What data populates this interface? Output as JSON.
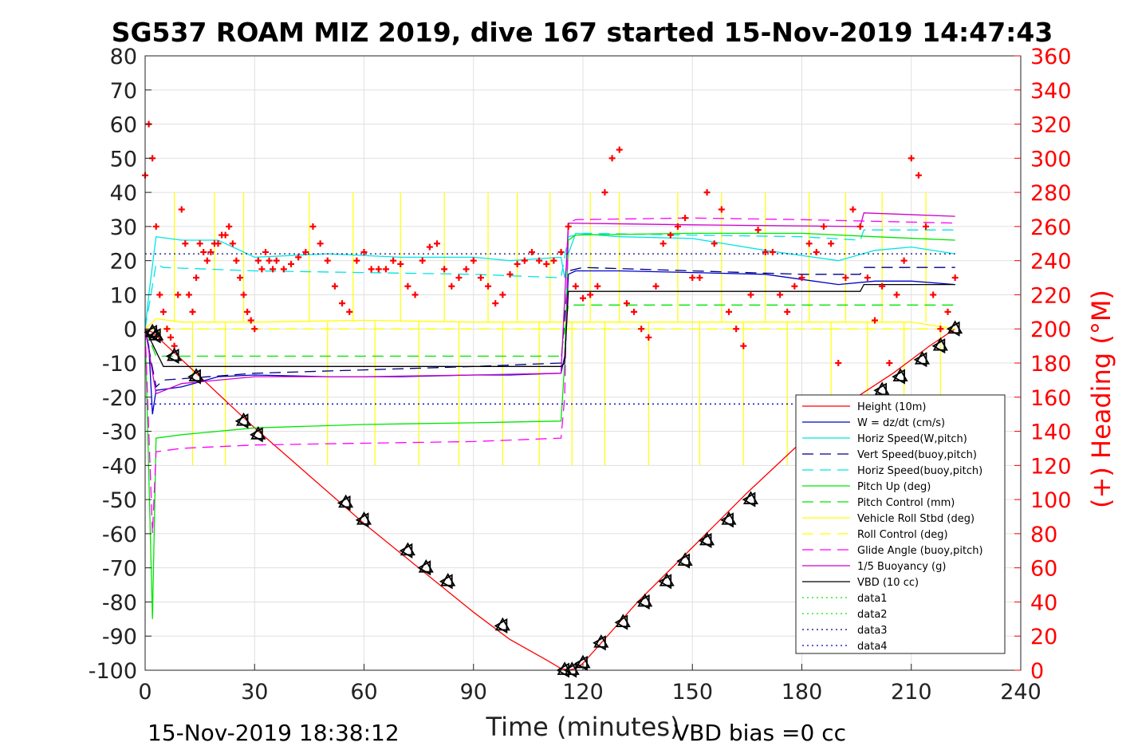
{
  "chart_data": {
    "type": "line",
    "title": "SG537 ROAM MIZ 2019, dive 167 started 15-Nov-2019 14:47:43",
    "xlabel": "Time (minutes)",
    "ylabel": "",
    "y2label": "(+) Heading (°M)",
    "xlim": [
      0,
      240
    ],
    "ylim": [
      -100,
      80
    ],
    "y2lim": [
      0,
      360
    ],
    "x_ticks": [
      "0",
      "30",
      "60",
      "90",
      "120",
      "150",
      "180",
      "210",
      "240"
    ],
    "y_ticks": [
      "80",
      "70",
      "60",
      "50",
      "40",
      "30",
      "20",
      "10",
      "0",
      "-10",
      "-20",
      "-30",
      "-40",
      "-50",
      "-60",
      "-70",
      "-80",
      "-90",
      "-100"
    ],
    "y2_ticks": [
      "360",
      "340",
      "320",
      "300",
      "280",
      "260",
      "240",
      "220",
      "200",
      "180",
      "160",
      "140",
      "120",
      "100",
      "80",
      "60",
      "40",
      "20",
      "0"
    ],
    "grid": true,
    "legend_position": "lower-right",
    "footer_left": "15-Nov-2019 18:38:12",
    "footer_right": "VBD bias =0 cc",
    "colors": {
      "height": "#ff0000",
      "w": "#0000cc",
      "horiz_speed_w": "#00e5e5",
      "vert_speed_buoy": "#000080",
      "horiz_speed_buoy": "#00e5e5",
      "pitch_up": "#00e600",
      "pitch_control": "#00e600",
      "roll": "#ffff00",
      "roll_control": "#ffff00",
      "glide_angle": "#ff00ff",
      "buoyancy": "#cc00cc",
      "vbd": "#000000",
      "data1": "#00e600",
      "data2": "#00e600",
      "data3": "#000080",
      "data4": "#0000cc",
      "heading": "#ff0000"
    },
    "series": [
      {
        "name": "Height (10m)",
        "key": "height",
        "style": "solid",
        "x": [
          0,
          2,
          5,
          10,
          20,
          30,
          45,
          60,
          75,
          90,
          100,
          110,
          114,
          116,
          118,
          120,
          125,
          135,
          150,
          165,
          180,
          195,
          205,
          215,
          222
        ],
        "values": [
          0,
          -1,
          -4,
          -9,
          -19,
          -29,
          -43,
          -57,
          -70,
          -83,
          -91,
          -97,
          -99.5,
          -100,
          -99.5,
          -98,
          -92,
          -80,
          -64,
          -48,
          -33,
          -20,
          -13,
          -5,
          0
        ]
      },
      {
        "name": "W = dz/dt (cm/s)",
        "key": "w",
        "style": "solid",
        "x": [
          0,
          1,
          2,
          3,
          10,
          20,
          30,
          50,
          70,
          90,
          100,
          114,
          115,
          116,
          118,
          130,
          150,
          170,
          190,
          200,
          210,
          222
        ],
        "values": [
          0,
          -5,
          -25,
          -18,
          -17,
          -14,
          -13.5,
          -14,
          -14,
          -13.5,
          -13.5,
          -13,
          -8,
          16,
          17,
          17,
          16.5,
          16,
          13,
          14,
          14,
          13
        ]
      },
      {
        "name": "Horiz Speed(W,pitch)",
        "key": "horiz_speed_w",
        "style": "solid",
        "x": [
          0,
          1,
          3,
          10,
          20,
          30,
          50,
          70,
          90,
          100,
          114,
          115,
          116,
          118,
          130,
          150,
          170,
          190,
          200,
          210,
          222
        ],
        "values": [
          0,
          10,
          27,
          26,
          26,
          21,
          22,
          21,
          21,
          20,
          21,
          15,
          22,
          28,
          27,
          26.5,
          23,
          20,
          23,
          24,
          22
        ]
      },
      {
        "name": "Vert Speed(buoy,pitch)",
        "key": "vert_speed_buoy",
        "style": "dashed",
        "x": [
          0,
          3,
          5,
          30,
          60,
          90,
          114,
          116,
          120,
          150,
          180,
          196,
          197,
          222
        ],
        "values": [
          0,
          -17,
          -15,
          -13,
          -12,
          -11,
          -10,
          17,
          18,
          17,
          16,
          16,
          18,
          18
        ]
      },
      {
        "name": "Horiz Speed(buoy,pitch)",
        "key": "horiz_speed_buoy",
        "style": "dashed",
        "x": [
          0,
          3,
          5,
          30,
          60,
          90,
          114,
          116,
          120,
          150,
          180,
          196,
          197,
          222
        ],
        "values": [
          0,
          19,
          18,
          17,
          16.5,
          16,
          15,
          27,
          28,
          27.5,
          27,
          26,
          29,
          29
        ]
      },
      {
        "name": "Pitch Up (deg)",
        "key": "pitch_up",
        "style": "solid",
        "x": [
          0,
          2,
          3,
          10,
          30,
          60,
          90,
          114,
          115,
          116,
          118,
          150,
          180,
          200,
          222
        ],
        "values": [
          0,
          -85,
          -32,
          -31,
          -29,
          -28,
          -27.5,
          -27,
          -10,
          26,
          27.5,
          28,
          28,
          27,
          26
        ]
      },
      {
        "name": "Pitch Control (mm)",
        "key": "pitch_control",
        "style": "dashed",
        "x": [
          0,
          3,
          114,
          116,
          222
        ],
        "values": [
          0,
          -8,
          -8,
          7,
          7
        ]
      },
      {
        "name": "Vehicle Roll Stbd (deg)",
        "key": "roll",
        "style": "solid",
        "x": [
          0,
          2,
          3,
          10,
          30,
          60,
          90,
          114,
          116,
          150,
          180,
          210,
          222
        ],
        "values": [
          0,
          2,
          3,
          2,
          2,
          2.5,
          2,
          2,
          2,
          2,
          2,
          2,
          0
        ]
      },
      {
        "name": "Roll Control (deg)",
        "key": "roll_control",
        "style": "dashed",
        "x": [
          0,
          222
        ],
        "values": [
          0,
          0
        ]
      },
      {
        "name": "Glide Angle (buoy,pitch)",
        "key": "glide_angle",
        "style": "dashed",
        "x": [
          0,
          2,
          3,
          10,
          30,
          60,
          90,
          114,
          115,
          116,
          118,
          150,
          180,
          222
        ],
        "values": [
          0,
          -60,
          -36,
          -35,
          -34,
          -33.5,
          -33,
          -32,
          -20,
          31,
          32,
          32.5,
          32,
          31
        ]
      },
      {
        "name": "1/5 Buoyancy (g)",
        "key": "buoyancy",
        "style": "solid",
        "x": [
          0,
          3,
          10,
          30,
          60,
          90,
          114,
          116,
          150,
          196,
          197,
          222
        ],
        "values": [
          0,
          -19,
          -16,
          -14,
          -14,
          -13.5,
          -13,
          31,
          30.5,
          30,
          34,
          33
        ]
      },
      {
        "name": "VBD (10 cc)",
        "key": "vbd",
        "style": "solid",
        "x": [
          0,
          5,
          114,
          115,
          116,
          196,
          197,
          222
        ],
        "values": [
          0,
          -11,
          -11,
          -10,
          11,
          11,
          13,
          13
        ]
      },
      {
        "name": "data1",
        "key": "data1",
        "style": "dotted",
        "x": [],
        "values": []
      },
      {
        "name": "data2",
        "key": "data2",
        "style": "dotted",
        "x": [],
        "values": []
      },
      {
        "name": "data3",
        "key": "data3",
        "style": "dotted",
        "x": [
          0,
          222
        ],
        "values": [
          22,
          22
        ]
      },
      {
        "name": "data4",
        "key": "data4",
        "style": "dotted",
        "x": [
          0,
          222
        ],
        "values": [
          -22,
          -22
        ]
      }
    ],
    "roll_spikes": {
      "x": [
        8,
        13,
        19,
        22,
        27,
        45,
        50,
        57,
        63,
        70,
        75,
        82,
        86,
        94,
        98,
        102,
        108,
        111,
        117,
        122,
        126,
        130,
        138,
        146,
        152,
        158,
        164,
        170,
        176,
        182,
        188,
        192,
        198,
        202,
        208,
        214,
        218
      ],
      "values": [
        40,
        -40,
        40,
        -40,
        40,
        40,
        -40,
        40,
        -40,
        40,
        -40,
        40,
        -40,
        40,
        -40,
        40,
        -40,
        40,
        -40,
        40,
        -40,
        40,
        -40,
        40,
        -40,
        40,
        -40,
        40,
        -40,
        40,
        -40,
        40,
        -40,
        40,
        -40,
        40,
        -40
      ]
    },
    "markers": {
      "x": [
        2,
        3,
        8,
        14,
        27,
        31,
        55,
        60,
        72,
        77,
        83,
        98,
        115,
        117,
        120,
        125,
        131,
        137,
        143,
        148,
        154,
        160,
        166,
        202,
        207,
        213,
        218,
        222
      ],
      "values": [
        -1,
        -2,
        -8,
        -14,
        -27,
        -31,
        -51,
        -56,
        -65,
        -70,
        -74,
        -87,
        -100,
        -100,
        -98,
        -92,
        -86,
        -80,
        -74,
        -68,
        -62,
        -56,
        -50,
        -18,
        -14,
        -9,
        -5,
        0
      ]
    },
    "heading": {
      "name": "(+) Heading (°M)",
      "x": [
        0,
        1,
        2,
        3,
        4,
        5,
        6,
        7,
        8,
        9,
        10,
        11,
        12,
        13,
        14,
        15,
        16,
        17,
        18,
        19,
        20,
        21,
        22,
        23,
        24,
        25,
        26,
        27,
        28,
        29,
        30,
        31,
        32,
        33,
        34,
        35,
        36,
        38,
        40,
        42,
        44,
        46,
        48,
        50,
        52,
        54,
        56,
        58,
        60,
        62,
        64,
        66,
        68,
        70,
        72,
        74,
        76,
        78,
        80,
        82,
        84,
        86,
        88,
        90,
        92,
        94,
        96,
        98,
        100,
        102,
        104,
        106,
        108,
        110,
        112,
        114,
        116,
        118,
        120,
        122,
        124,
        126,
        128,
        130,
        132,
        134,
        136,
        138,
        140,
        142,
        144,
        146,
        148,
        150,
        152,
        154,
        156,
        158,
        160,
        162,
        164,
        166,
        168,
        170,
        172,
        174,
        176,
        178,
        180,
        182,
        184,
        186,
        188,
        190,
        192,
        194,
        196,
        198,
        200,
        202,
        204,
        206,
        208,
        210,
        212,
        214,
        216,
        218,
        220,
        222
      ],
      "values": [
        290,
        320,
        300,
        260,
        220,
        210,
        200,
        195,
        190,
        220,
        270,
        250,
        220,
        210,
        230,
        250,
        245,
        240,
        245,
        250,
        250,
        255,
        255,
        260,
        250,
        240,
        230,
        220,
        210,
        205,
        200,
        240,
        235,
        245,
        240,
        235,
        240,
        235,
        238,
        242,
        245,
        260,
        250,
        240,
        225,
        215,
        210,
        240,
        245,
        235,
        235,
        235,
        240,
        238,
        225,
        220,
        240,
        248,
        250,
        235,
        225,
        230,
        235,
        240,
        230,
        225,
        215,
        220,
        232,
        238,
        240,
        245,
        240,
        238,
        240,
        245,
        260,
        225,
        218,
        220,
        225,
        280,
        300,
        305,
        215,
        210,
        200,
        195,
        225,
        250,
        255,
        260,
        265,
        230,
        230,
        280,
        250,
        270,
        210,
        200,
        190,
        220,
        258,
        245,
        245,
        220,
        210,
        225,
        230,
        250,
        245,
        260,
        250,
        180,
        230,
        270,
        260,
        230,
        205,
        225,
        180,
        220,
        240,
        300,
        290,
        260,
        220,
        200,
        210,
        230
      ]
    }
  }
}
